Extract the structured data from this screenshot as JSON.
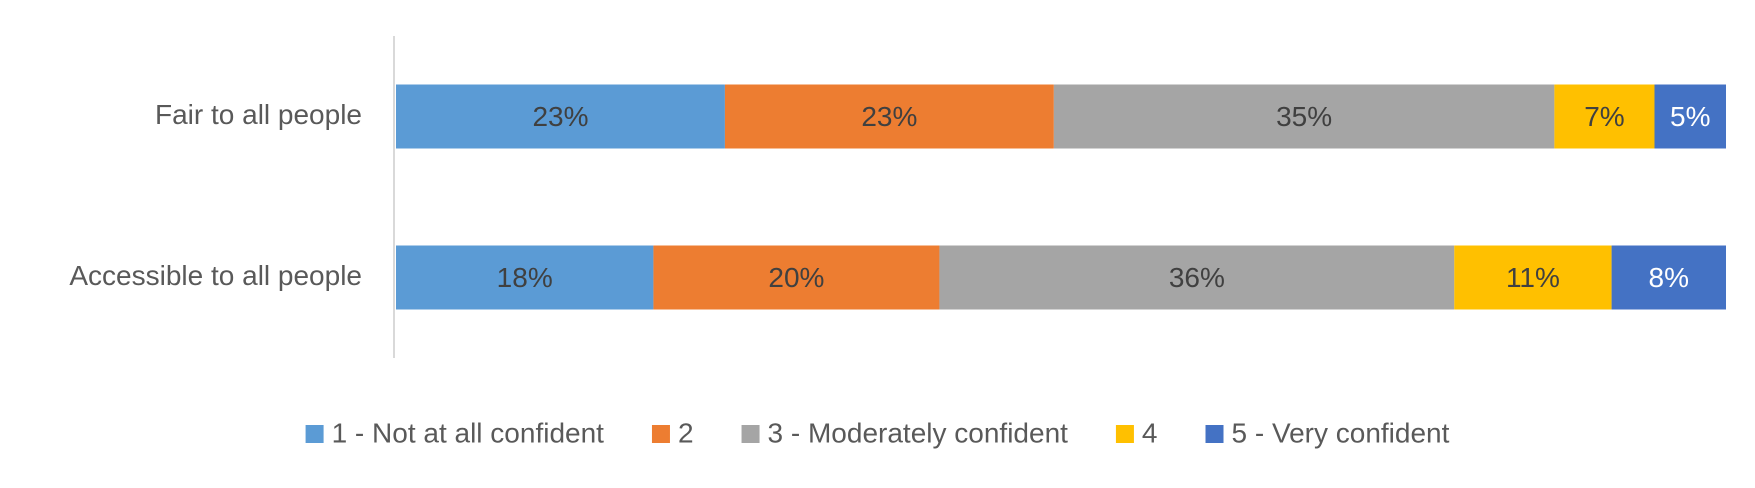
{
  "chart_data": {
    "type": "stacked_barh",
    "categories": [
      "Fair to all people",
      "Accessible to all people"
    ],
    "series": [
      {
        "name": "1 - Not at all confident",
        "color": "#5b9bd5",
        "values": [
          23,
          18
        ],
        "value_labels": [
          "23%",
          "18%"
        ]
      },
      {
        "name": "2",
        "color": "#ed7d31",
        "values": [
          23,
          20
        ],
        "value_labels": [
          "23%",
          "20%"
        ]
      },
      {
        "name": "3 - Moderately confident",
        "color": "#a5a5a5",
        "values": [
          35,
          36
        ],
        "value_labels": [
          "35%",
          "36%"
        ]
      },
      {
        "name": "4",
        "color": "#ffc000",
        "values": [
          7,
          11
        ],
        "value_labels": [
          "7%",
          "11%"
        ]
      },
      {
        "name": "5 - Very confident",
        "color": "#4472c4",
        "values": [
          5,
          8
        ],
        "value_labels": [
          "5%",
          "8%"
        ]
      }
    ],
    "xlim": [
      0,
      93
    ],
    "legend": "bottom"
  }
}
